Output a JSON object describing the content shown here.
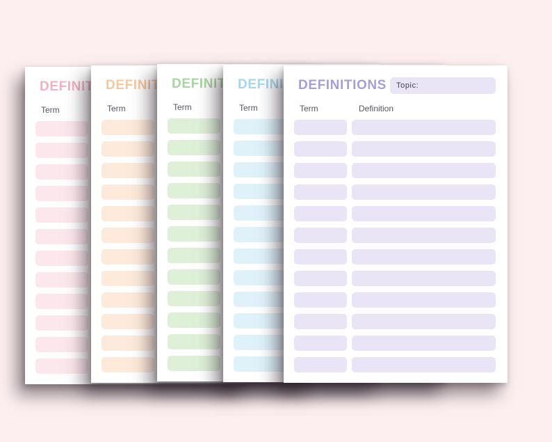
{
  "canvas": {
    "background_color": "#fdeff0",
    "bg_style": "background:#fdeff0"
  },
  "shared": {
    "title": "DEFINITIONS",
    "topic_label": "Topic:",
    "term_header": "Term",
    "definition_header": "Definition",
    "row_count": 12
  },
  "pages": [
    {
      "name": "pink",
      "title_color": "#f2b2c0",
      "field_color": "#fce8ec",
      "css_vars": "--title-color:#f2b2c0;--field-color:#fce8ec"
    },
    {
      "name": "peach",
      "title_color": "#f6c89e",
      "field_color": "#fdeada",
      "css_vars": "--title-color:#f6c89e;--field-color:#fdeada"
    },
    {
      "name": "green",
      "title_color": "#a9d5a1",
      "field_color": "#def0d8",
      "css_vars": "--title-color:#a9d5a1;--field-color:#def0d8"
    },
    {
      "name": "blue",
      "title_color": "#a5d8ee",
      "field_color": "#dff2fa",
      "css_vars": "--title-color:#a5d8ee;--field-color:#dff2fa"
    },
    {
      "name": "purple",
      "title_color": "#a79ed7",
      "field_color": "#e9e4f6",
      "css_vars": "--title-color:#a79ed7;--field-color:#e9e4f6"
    }
  ]
}
